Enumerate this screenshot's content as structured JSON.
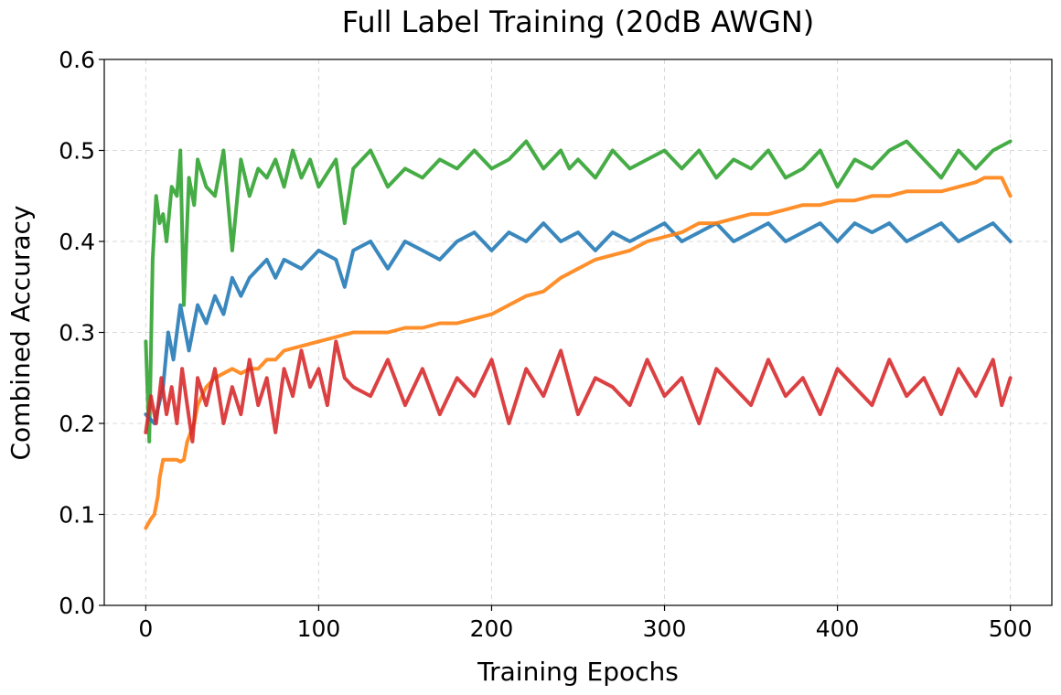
{
  "chart_data": {
    "type": "line",
    "title": "Full Label Training (20dB AWGN)",
    "xlabel": "Training Epochs",
    "ylabel": "Combined Accuracy",
    "xlim": [
      -24,
      524
    ],
    "ylim": [
      0.0,
      0.6
    ],
    "xticks": [
      0,
      100,
      200,
      300,
      400,
      500
    ],
    "xtick_labels": [
      "0",
      "100",
      "200",
      "300",
      "400",
      "500"
    ],
    "yticks": [
      0.0,
      0.1,
      0.2,
      0.3,
      0.4,
      0.5,
      0.6
    ],
    "ytick_labels": [
      "0.0",
      "0.1",
      "0.2",
      "0.3",
      "0.4",
      "0.5",
      "0.6"
    ],
    "grid": true,
    "legend": "none",
    "series": [
      {
        "name": "green",
        "color": "#2ca02c",
        "x": [
          0,
          2,
          4,
          6,
          8,
          10,
          12,
          15,
          18,
          20,
          22,
          25,
          28,
          30,
          35,
          40,
          45,
          50,
          55,
          60,
          65,
          70,
          75,
          80,
          85,
          90,
          95,
          100,
          110,
          115,
          120,
          130,
          140,
          150,
          160,
          170,
          180,
          190,
          200,
          210,
          220,
          230,
          240,
          245,
          250,
          260,
          270,
          280,
          290,
          300,
          310,
          320,
          330,
          340,
          350,
          360,
          370,
          380,
          390,
          400,
          410,
          420,
          430,
          440,
          450,
          460,
          470,
          480,
          490,
          500
        ],
        "values": [
          0.29,
          0.18,
          0.38,
          0.45,
          0.42,
          0.43,
          0.4,
          0.46,
          0.45,
          0.5,
          0.33,
          0.47,
          0.44,
          0.49,
          0.46,
          0.45,
          0.5,
          0.39,
          0.49,
          0.45,
          0.48,
          0.47,
          0.49,
          0.46,
          0.5,
          0.47,
          0.49,
          0.46,
          0.49,
          0.42,
          0.48,
          0.5,
          0.46,
          0.48,
          0.47,
          0.49,
          0.48,
          0.5,
          0.48,
          0.49,
          0.51,
          0.48,
          0.5,
          0.48,
          0.49,
          0.47,
          0.5,
          0.48,
          0.49,
          0.5,
          0.48,
          0.5,
          0.47,
          0.49,
          0.48,
          0.5,
          0.47,
          0.48,
          0.5,
          0.46,
          0.49,
          0.48,
          0.5,
          0.51,
          0.49,
          0.47,
          0.5,
          0.48,
          0.5,
          0.51
        ]
      },
      {
        "name": "blue",
        "color": "#1f77b4",
        "x": [
          0,
          5,
          10,
          13,
          16,
          20,
          25,
          30,
          35,
          40,
          45,
          50,
          55,
          60,
          65,
          70,
          75,
          80,
          90,
          100,
          110,
          115,
          120,
          130,
          140,
          150,
          160,
          170,
          180,
          190,
          200,
          210,
          220,
          230,
          240,
          250,
          260,
          270,
          280,
          290,
          300,
          310,
          320,
          330,
          340,
          350,
          360,
          370,
          380,
          390,
          400,
          410,
          420,
          430,
          440,
          450,
          460,
          470,
          480,
          490,
          500
        ],
        "values": [
          0.21,
          0.2,
          0.24,
          0.3,
          0.27,
          0.33,
          0.28,
          0.33,
          0.31,
          0.34,
          0.32,
          0.36,
          0.34,
          0.36,
          0.37,
          0.38,
          0.36,
          0.38,
          0.37,
          0.39,
          0.38,
          0.35,
          0.39,
          0.4,
          0.37,
          0.4,
          0.39,
          0.38,
          0.4,
          0.41,
          0.39,
          0.41,
          0.4,
          0.42,
          0.4,
          0.41,
          0.39,
          0.41,
          0.4,
          0.41,
          0.42,
          0.4,
          0.41,
          0.42,
          0.4,
          0.41,
          0.42,
          0.4,
          0.41,
          0.42,
          0.4,
          0.42,
          0.41,
          0.42,
          0.4,
          0.41,
          0.42,
          0.4,
          0.41,
          0.42,
          0.4
        ]
      },
      {
        "name": "orange",
        "color": "#ff7f0e",
        "x": [
          0,
          3,
          5,
          7,
          8,
          10,
          12,
          15,
          18,
          20,
          22,
          24,
          26,
          28,
          30,
          35,
          40,
          45,
          50,
          55,
          60,
          65,
          70,
          75,
          80,
          90,
          100,
          110,
          120,
          130,
          140,
          150,
          160,
          170,
          180,
          190,
          200,
          210,
          220,
          230,
          240,
          250,
          260,
          270,
          280,
          290,
          300,
          310,
          320,
          330,
          340,
          350,
          360,
          370,
          380,
          390,
          400,
          410,
          420,
          430,
          440,
          450,
          460,
          470,
          480,
          485,
          490,
          495,
          500
        ],
        "values": [
          0.085,
          0.095,
          0.1,
          0.12,
          0.14,
          0.16,
          0.16,
          0.16,
          0.16,
          0.158,
          0.16,
          0.18,
          0.19,
          0.2,
          0.22,
          0.24,
          0.25,
          0.255,
          0.26,
          0.255,
          0.26,
          0.26,
          0.27,
          0.27,
          0.28,
          0.285,
          0.29,
          0.295,
          0.3,
          0.3,
          0.3,
          0.305,
          0.305,
          0.31,
          0.31,
          0.315,
          0.32,
          0.33,
          0.34,
          0.345,
          0.36,
          0.37,
          0.38,
          0.385,
          0.39,
          0.4,
          0.405,
          0.41,
          0.42,
          0.42,
          0.425,
          0.43,
          0.43,
          0.435,
          0.44,
          0.44,
          0.445,
          0.445,
          0.45,
          0.45,
          0.455,
          0.455,
          0.455,
          0.46,
          0.465,
          0.47,
          0.47,
          0.47,
          0.45
        ]
      },
      {
        "name": "red",
        "color": "#d62728",
        "x": [
          0,
          3,
          6,
          9,
          12,
          15,
          18,
          21,
          24,
          27,
          30,
          35,
          40,
          45,
          50,
          55,
          60,
          65,
          70,
          75,
          80,
          85,
          90,
          95,
          100,
          105,
          110,
          115,
          120,
          130,
          140,
          150,
          160,
          170,
          180,
          190,
          200,
          210,
          220,
          230,
          240,
          250,
          260,
          270,
          280,
          290,
          300,
          310,
          320,
          330,
          340,
          350,
          360,
          370,
          380,
          390,
          400,
          410,
          420,
          430,
          440,
          450,
          460,
          470,
          480,
          490,
          495,
          500
        ],
        "values": [
          0.19,
          0.23,
          0.2,
          0.25,
          0.21,
          0.24,
          0.2,
          0.26,
          0.22,
          0.18,
          0.25,
          0.22,
          0.26,
          0.2,
          0.24,
          0.21,
          0.27,
          0.22,
          0.25,
          0.19,
          0.26,
          0.23,
          0.28,
          0.24,
          0.26,
          0.22,
          0.29,
          0.25,
          0.24,
          0.23,
          0.27,
          0.22,
          0.26,
          0.21,
          0.25,
          0.23,
          0.27,
          0.2,
          0.26,
          0.23,
          0.28,
          0.21,
          0.25,
          0.24,
          0.22,
          0.27,
          0.23,
          0.25,
          0.2,
          0.26,
          0.24,
          0.22,
          0.27,
          0.23,
          0.25,
          0.21,
          0.26,
          0.24,
          0.22,
          0.27,
          0.23,
          0.25,
          0.21,
          0.26,
          0.23,
          0.27,
          0.22,
          0.25
        ]
      }
    ]
  }
}
